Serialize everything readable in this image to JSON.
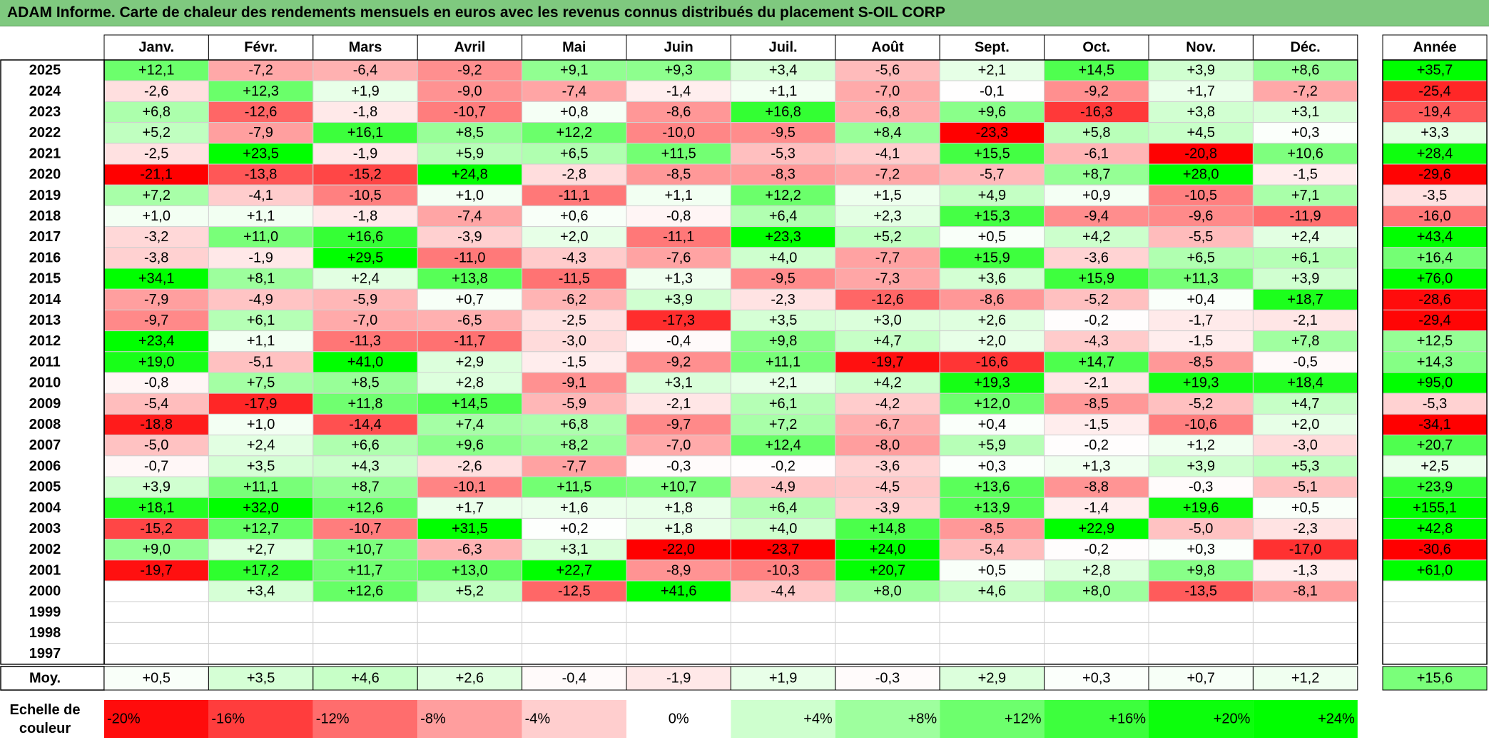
{
  "title": "ADAM Informe. Carte de chaleur des rendements mensuels en euros avec les revenus connus distribués du placement S-OIL CORP",
  "chart_data": {
    "type": "heatmap",
    "months": [
      "Janv.",
      "Févr.",
      "Mars",
      "Avril",
      "Mai",
      "Juin",
      "Juil.",
      "Août",
      "Sept.",
      "Oct.",
      "Nov.",
      "Déc."
    ],
    "year_header": "Année",
    "rows": [
      {
        "year": "2025",
        "values": [
          12.1,
          -7.2,
          -6.4,
          -9.2,
          9.1,
          9.3,
          3.4,
          -5.6,
          2.1,
          14.5,
          3.9,
          8.6
        ],
        "annual": 35.7
      },
      {
        "year": "2024",
        "values": [
          -2.6,
          12.3,
          1.9,
          -9.0,
          -7.4,
          -1.4,
          1.1,
          -7.0,
          -0.1,
          -9.2,
          1.7,
          -7.2
        ],
        "annual": -25.4
      },
      {
        "year": "2023",
        "values": [
          6.8,
          -12.6,
          -1.8,
          -10.7,
          0.8,
          -8.6,
          16.8,
          -6.8,
          9.6,
          -16.3,
          3.8,
          3.1
        ],
        "annual": -19.4
      },
      {
        "year": "2022",
        "values": [
          5.2,
          -7.9,
          16.1,
          8.5,
          12.2,
          -10.0,
          -9.5,
          8.4,
          -23.3,
          5.8,
          4.5,
          0.3
        ],
        "annual": 3.3
      },
      {
        "year": "2021",
        "values": [
          -2.5,
          23.5,
          -1.9,
          5.9,
          6.5,
          11.5,
          -5.3,
          -4.1,
          15.5,
          -6.1,
          -20.8,
          10.6
        ],
        "annual": 28.4
      },
      {
        "year": "2020",
        "values": [
          -21.1,
          -13.8,
          -15.2,
          24.8,
          -2.8,
          -8.5,
          -8.3,
          -7.2,
          -5.7,
          8.7,
          28.0,
          -1.5
        ],
        "annual": -29.6
      },
      {
        "year": "2019",
        "values": [
          7.2,
          -4.1,
          -10.5,
          1.0,
          -11.1,
          1.1,
          12.2,
          1.5,
          4.9,
          0.9,
          -10.5,
          7.1
        ],
        "annual": -3.5
      },
      {
        "year": "2018",
        "values": [
          1.0,
          1.1,
          -1.8,
          -7.4,
          0.6,
          -0.8,
          6.4,
          2.3,
          15.3,
          -9.4,
          -9.6,
          -11.9
        ],
        "annual": -16.0
      },
      {
        "year": "2017",
        "values": [
          -3.2,
          11.0,
          16.6,
          -3.9,
          2.0,
          -11.1,
          23.3,
          5.2,
          0.5,
          4.2,
          -5.5,
          2.4
        ],
        "annual": 43.4
      },
      {
        "year": "2016",
        "values": [
          -3.8,
          -1.9,
          29.5,
          -11.0,
          -4.3,
          -7.6,
          4.0,
          -7.7,
          15.9,
          -3.6,
          6.5,
          6.1
        ],
        "annual": 16.4
      },
      {
        "year": "2015",
        "values": [
          34.1,
          8.1,
          2.4,
          13.8,
          -11.5,
          1.3,
          -9.5,
          -7.3,
          3.6,
          15.9,
          11.3,
          3.9
        ],
        "annual": 76.0
      },
      {
        "year": "2014",
        "values": [
          -7.9,
          -4.9,
          -5.9,
          0.7,
          -6.2,
          3.9,
          -2.3,
          -12.6,
          -8.6,
          -5.2,
          0.4,
          18.7
        ],
        "annual": -28.6
      },
      {
        "year": "2013",
        "values": [
          -9.7,
          6.1,
          -7.0,
          -6.5,
          -2.5,
          -17.3,
          3.5,
          3.0,
          2.6,
          -0.2,
          -1.7,
          -2.1
        ],
        "annual": -29.4
      },
      {
        "year": "2012",
        "values": [
          23.4,
          1.1,
          -11.3,
          -11.7,
          -3.0,
          -0.4,
          9.8,
          4.7,
          2.0,
          -4.3,
          -1.5,
          7.8
        ],
        "annual": 12.5
      },
      {
        "year": "2011",
        "values": [
          19.0,
          -5.1,
          41.0,
          2.9,
          -1.5,
          -9.2,
          11.1,
          -19.7,
          -16.6,
          14.7,
          -8.5,
          -0.5
        ],
        "annual": 14.3
      },
      {
        "year": "2010",
        "values": [
          -0.8,
          7.5,
          8.5,
          2.8,
          -9.1,
          3.1,
          2.1,
          4.2,
          19.3,
          -2.1,
          19.3,
          18.4
        ],
        "annual": 95.0
      },
      {
        "year": "2009",
        "values": [
          -5.4,
          -17.9,
          11.8,
          14.5,
          -5.9,
          -2.1,
          6.1,
          -4.2,
          12.0,
          -8.5,
          -5.2,
          4.7
        ],
        "annual": -5.3
      },
      {
        "year": "2008",
        "values": [
          -18.8,
          1.0,
          -14.4,
          7.4,
          6.8,
          -9.7,
          7.2,
          -6.7,
          0.4,
          -1.5,
          -10.6,
          2.0
        ],
        "annual": -34.1
      },
      {
        "year": "2007",
        "values": [
          -5.0,
          2.4,
          6.6,
          9.6,
          8.2,
          -7.0,
          12.4,
          -8.0,
          5.9,
          -0.2,
          1.2,
          -3.0
        ],
        "annual": 20.7
      },
      {
        "year": "2006",
        "values": [
          -0.7,
          3.5,
          4.3,
          -2.6,
          -7.7,
          -0.3,
          -0.2,
          -3.6,
          0.3,
          1.3,
          3.9,
          5.3
        ],
        "annual": 2.5
      },
      {
        "year": "2005",
        "values": [
          3.9,
          11.1,
          8.7,
          -10.1,
          11.5,
          10.7,
          -4.9,
          -4.5,
          13.6,
          -8.8,
          -0.3,
          -5.1
        ],
        "annual": 23.9
      },
      {
        "year": "2004",
        "values": [
          18.1,
          32.0,
          12.6,
          1.7,
          1.6,
          1.8,
          6.4,
          -3.9,
          13.9,
          -1.4,
          19.6,
          0.5
        ],
        "annual": 155.1
      },
      {
        "year": "2003",
        "values": [
          -15.2,
          12.7,
          -10.7,
          31.5,
          0.2,
          1.8,
          4.0,
          14.8,
          -8.5,
          22.9,
          -5.0,
          -2.3
        ],
        "annual": 42.8
      },
      {
        "year": "2002",
        "values": [
          9.0,
          2.7,
          10.7,
          -6.3,
          3.1,
          -22.0,
          -23.7,
          24.0,
          -5.4,
          -0.2,
          0.3,
          -17.0
        ],
        "annual": -30.6
      },
      {
        "year": "2001",
        "values": [
          -19.7,
          17.2,
          11.7,
          13.0,
          22.7,
          -8.9,
          -10.3,
          20.7,
          0.5,
          2.8,
          9.8,
          -1.3
        ],
        "annual": 61.0
      },
      {
        "year": "2000",
        "values": [
          null,
          3.4,
          12.6,
          5.2,
          -12.5,
          41.6,
          -4.4,
          8.0,
          4.6,
          8.0,
          -13.5,
          -8.1
        ],
        "annual": null
      },
      {
        "year": "1999",
        "values": [
          null,
          null,
          null,
          null,
          null,
          null,
          null,
          null,
          null,
          null,
          null,
          null
        ],
        "annual": null
      },
      {
        "year": "1998",
        "values": [
          null,
          null,
          null,
          null,
          null,
          null,
          null,
          null,
          null,
          null,
          null,
          null
        ],
        "annual": null
      },
      {
        "year": "1997",
        "values": [
          null,
          null,
          null,
          null,
          null,
          null,
          null,
          null,
          null,
          null,
          null,
          null
        ],
        "annual": null
      }
    ],
    "average": {
      "label": "Moy.",
      "values": [
        0.5,
        3.5,
        4.6,
        2.6,
        -0.4,
        -1.9,
        1.9,
        -0.3,
        2.9,
        0.3,
        0.7,
        1.2
      ],
      "annual": 15.6
    },
    "scale": {
      "label_line1": "Echelle de",
      "label_line2": "couleur",
      "steps": [
        {
          "label": "-20%",
          "value": -20
        },
        {
          "label": "-16%",
          "value": -16
        },
        {
          "label": "-12%",
          "value": -12
        },
        {
          "label": "-8%",
          "value": -8
        },
        {
          "label": "-4%",
          "value": -4
        },
        {
          "label": "0%",
          "value": 0
        },
        {
          "label": "+4%",
          "value": 4
        },
        {
          "label": "+8%",
          "value": 8
        },
        {
          "label": "+12%",
          "value": 12
        },
        {
          "label": "+16%",
          "value": 16
        },
        {
          "label": "+20%",
          "value": 20
        },
        {
          "label": "+24%",
          "value": 24
        }
      ]
    },
    "colors": {
      "max_negative": "#ff0000",
      "neutral": "#ffffff",
      "max_positive": "#00ff00",
      "title_bar": "#7fc97f"
    }
  }
}
